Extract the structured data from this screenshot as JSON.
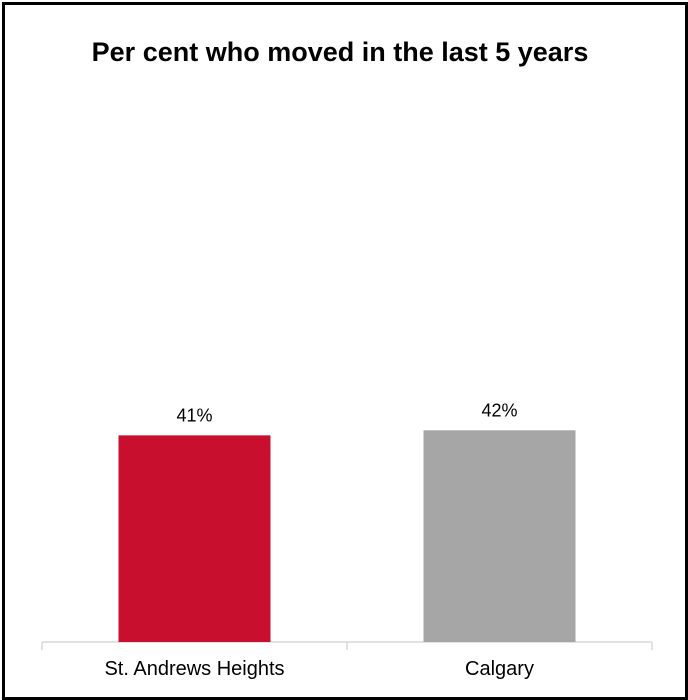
{
  "chart_data": {
    "type": "bar",
    "title": "Per cent who moved in the last 5 years",
    "categories": [
      "St. Andrews Heights",
      "Calgary"
    ],
    "values": [
      41,
      42
    ],
    "data_labels": [
      "41%",
      "42%"
    ],
    "colors": [
      "#c8102e",
      "#a6a6a6"
    ],
    "xlabel": "",
    "ylabel": "",
    "ylim": [
      0,
      100
    ],
    "grid": false,
    "legend": "none"
  }
}
